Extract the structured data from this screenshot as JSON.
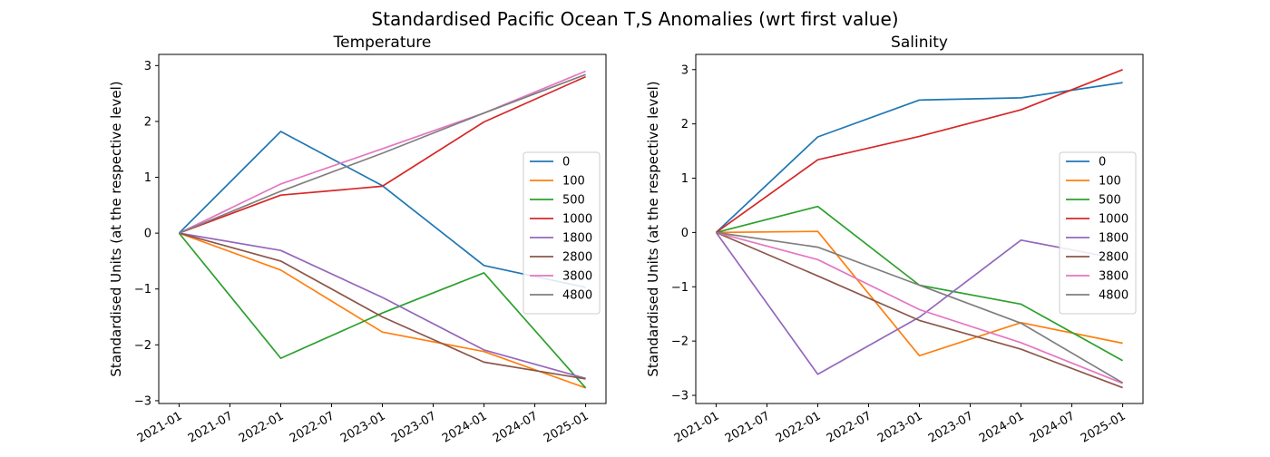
{
  "suptitle": "Standardised Pacific Ocean T,S Anomalies (wrt first value)",
  "chart_data": [
    {
      "type": "line",
      "title": "Temperature",
      "xlabel": "",
      "ylabel": "Standardised Units (at the respective level)",
      "x": [
        "2021-01",
        "2022-01",
        "2023-01",
        "2024-01",
        "2025-01"
      ],
      "xticks": [
        "2021-01",
        "2021-07",
        "2022-01",
        "2022-07",
        "2023-01",
        "2023-07",
        "2024-01",
        "2024-07",
        "2025-01"
      ],
      "yticks": [
        3,
        2,
        1,
        0,
        -1,
        -2,
        -3
      ],
      "ylim": [
        -3.05,
        3.2
      ],
      "grid": false,
      "legend": "center-right",
      "series": [
        {
          "name": "0",
          "color": "#1f77b4",
          "values": [
            0,
            1.82,
            0.85,
            -0.58,
            -0.97
          ]
        },
        {
          "name": "100",
          "color": "#ff7f0e",
          "values": [
            0,
            -0.66,
            -1.77,
            -2.12,
            -2.77
          ]
        },
        {
          "name": "500",
          "color": "#2ca02c",
          "values": [
            0,
            -2.24,
            -1.43,
            -0.71,
            -2.77
          ]
        },
        {
          "name": "1000",
          "color": "#d62728",
          "values": [
            0,
            0.68,
            0.84,
            1.99,
            2.8
          ]
        },
        {
          "name": "1800",
          "color": "#9467bd",
          "values": [
            0,
            -0.31,
            -1.15,
            -2.09,
            -2.6
          ]
        },
        {
          "name": "2800",
          "color": "#8c564b",
          "values": [
            0,
            -0.5,
            -1.5,
            -2.31,
            -2.61
          ]
        },
        {
          "name": "3800",
          "color": "#e377c2",
          "values": [
            0,
            0.88,
            1.51,
            2.15,
            2.9
          ]
        },
        {
          "name": "4800",
          "color": "#7f7f7f",
          "values": [
            0,
            0.75,
            1.43,
            2.15,
            2.84
          ]
        }
      ]
    },
    {
      "type": "line",
      "title": "Salinity",
      "xlabel": "",
      "ylabel": "Standardised Units (at the respective level)",
      "x": [
        "2021-01",
        "2022-01",
        "2023-01",
        "2024-01",
        "2025-01"
      ],
      "xticks": [
        "2021-01",
        "2021-07",
        "2022-01",
        "2022-07",
        "2023-01",
        "2023-07",
        "2024-01",
        "2024-07",
        "2025-01"
      ],
      "yticks": [
        3,
        2,
        1,
        0,
        -1,
        -2,
        -3
      ],
      "ylim": [
        -3.15,
        3.28
      ],
      "grid": false,
      "legend": "center-right",
      "series": [
        {
          "name": "0",
          "color": "#1f77b4",
          "values": [
            0,
            1.76,
            2.44,
            2.48,
            2.76
          ]
        },
        {
          "name": "100",
          "color": "#ff7f0e",
          "values": [
            0,
            0.02,
            -2.27,
            -1.66,
            -2.04
          ]
        },
        {
          "name": "500",
          "color": "#2ca02c",
          "values": [
            0,
            0.48,
            -0.97,
            -1.32,
            -2.36
          ]
        },
        {
          "name": "1000",
          "color": "#d62728",
          "values": [
            0,
            1.34,
            1.77,
            2.26,
            3.0
          ]
        },
        {
          "name": "1800",
          "color": "#9467bd",
          "values": [
            0,
            -2.61,
            -1.56,
            -0.14,
            -0.5
          ]
        },
        {
          "name": "2800",
          "color": "#8c564b",
          "values": [
            0,
            -0.8,
            -1.62,
            -2.15,
            -2.86
          ]
        },
        {
          "name": "3800",
          "color": "#e377c2",
          "values": [
            0,
            -0.5,
            -1.42,
            -2.03,
            -2.78
          ]
        },
        {
          "name": "4800",
          "color": "#7f7f7f",
          "values": [
            0,
            -0.27,
            -0.97,
            -1.67,
            -2.77
          ]
        }
      ]
    }
  ]
}
